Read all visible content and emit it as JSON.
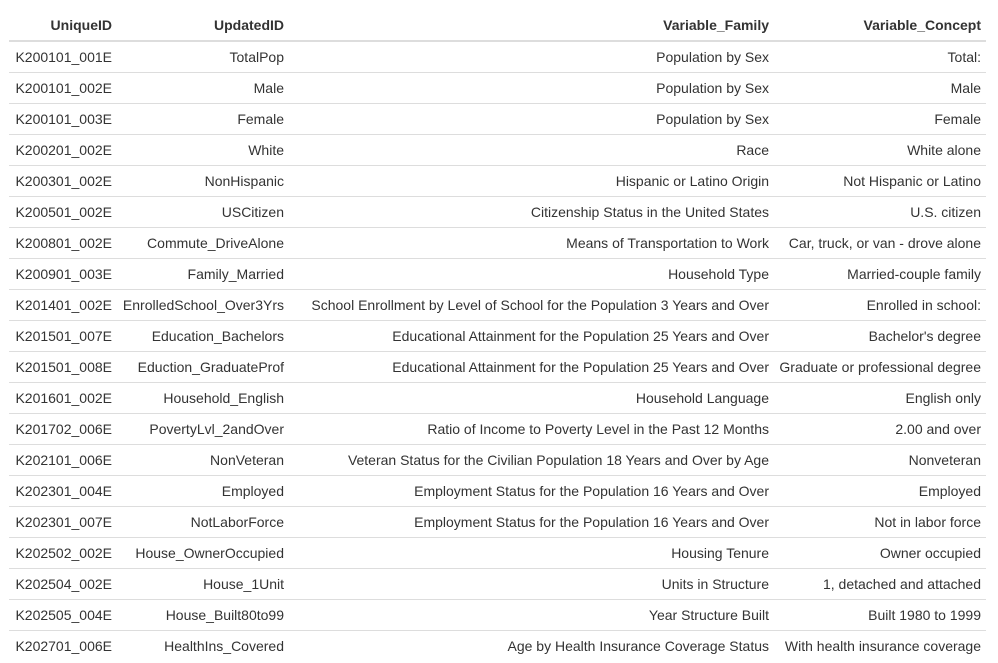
{
  "table": {
    "headers": [
      "UniqueID",
      "UpdatedID",
      "Variable_Family",
      "Variable_Concept"
    ],
    "rows": [
      [
        "K200101_001E",
        "TotalPop",
        "Population by Sex",
        "Total:"
      ],
      [
        "K200101_002E",
        "Male",
        "Population by Sex",
        "Male"
      ],
      [
        "K200101_003E",
        "Female",
        "Population by Sex",
        "Female"
      ],
      [
        "K200201_002E",
        "White",
        "Race",
        "White alone"
      ],
      [
        "K200301_002E",
        "NonHispanic",
        "Hispanic or Latino Origin",
        "Not Hispanic or Latino"
      ],
      [
        "K200501_002E",
        "USCitizen",
        "Citizenship Status in the United States",
        "U.S. citizen"
      ],
      [
        "K200801_002E",
        "Commute_DriveAlone",
        "Means of Transportation to Work",
        "Car, truck, or van - drove alone"
      ],
      [
        "K200901_003E",
        "Family_Married",
        "Household Type",
        "Married-couple family"
      ],
      [
        "K201401_002E",
        "EnrolledSchool_Over3Yrs",
        "School Enrollment by Level of School for the Population 3 Years and Over",
        "Enrolled in school:"
      ],
      [
        "K201501_007E",
        "Education_Bachelors",
        "Educational Attainment for the Population 25 Years and Over",
        "Bachelor's degree"
      ],
      [
        "K201501_008E",
        "Eduction_GraduateProf",
        "Educational Attainment for the Population 25 Years and Over",
        "Graduate or professional degree"
      ],
      [
        "K201601_002E",
        "Household_English",
        "Household Language",
        "English only"
      ],
      [
        "K201702_006E",
        "PovertyLvl_2andOver",
        "Ratio of Income to Poverty Level in the Past 12 Months",
        "2.00 and over"
      ],
      [
        "K202101_006E",
        "NonVeteran",
        "Veteran Status for the Civilian Population 18 Years and Over by Age",
        "Nonveteran"
      ],
      [
        "K202301_004E",
        "Employed",
        "Employment Status for the Population 16 Years and Over",
        "Employed"
      ],
      [
        "K202301_007E",
        "NotLaborForce",
        "Employment Status for the Population 16 Years and Over",
        "Not in labor force"
      ],
      [
        "K202502_002E",
        "House_OwnerOccupied",
        "Housing Tenure",
        "Owner occupied"
      ],
      [
        "K202504_002E",
        "House_1Unit",
        "Units in Structure",
        "1, detached and attached"
      ],
      [
        "K202505_004E",
        "House_Built80to99",
        "Year Structure Built",
        "Built 1980 to 1999"
      ],
      [
        "K202701_006E",
        "HealthIns_Covered",
        "Age by Health Insurance Coverage Status",
        "With health insurance coverage"
      ]
    ]
  },
  "colors": {
    "text": "#333333",
    "border": "#dddddd",
    "background": "#ffffff"
  }
}
